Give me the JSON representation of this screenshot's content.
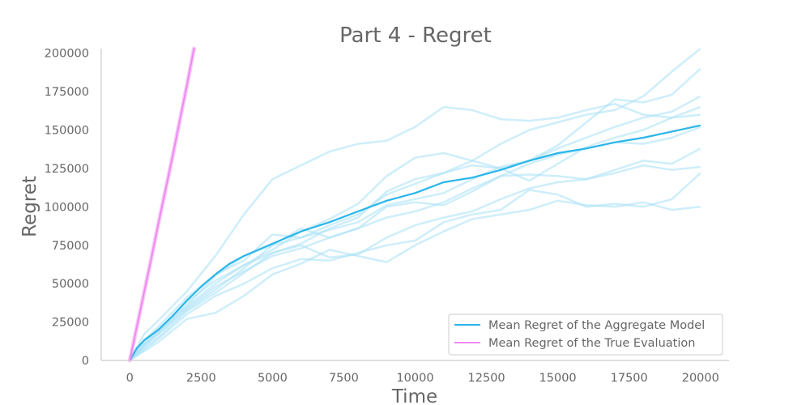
{
  "chart_data": {
    "type": "line",
    "title": "Part 4 - Regret",
    "xlabel": "Time",
    "ylabel": "Regret",
    "xlim": [
      -1000,
      21000
    ],
    "ylim": [
      0,
      203000
    ],
    "xticks": [
      0,
      2500,
      5000,
      7500,
      10000,
      12500,
      15000,
      17500,
      20000
    ],
    "xtick_labels": [
      "0",
      "2500",
      "5000",
      "7500",
      "10000",
      "12500",
      "15000",
      "17500",
      "20000"
    ],
    "yticks": [
      0,
      25000,
      50000,
      75000,
      100000,
      125000,
      150000,
      175000,
      200000
    ],
    "ytick_labels": [
      "0",
      "25000",
      "50000",
      "75000",
      "100000",
      "125000",
      "150000",
      "175000",
      "200000"
    ],
    "grid": false,
    "legend_position": "lower-right",
    "colors": {
      "aggregate": "#29b5ea",
      "aggregate_runs": "#aee3f7",
      "true_eval": "#ee8af0",
      "text": "#666666",
      "spine": "#cccccc"
    },
    "series": [
      {
        "name": "Mean Regret of the Aggregate Model",
        "x": [
          0,
          250,
          500,
          1000,
          1500,
          2000,
          2500,
          3000,
          3500,
          4000,
          5000,
          6000,
          7000,
          8000,
          9000,
          10000,
          11000,
          12000,
          13000,
          14000,
          15000,
          16000,
          17000,
          18000,
          19000,
          20000
        ],
        "y": [
          0,
          8000,
          13000,
          20000,
          29000,
          39000,
          48000,
          56000,
          63000,
          68000,
          76000,
          84000,
          90000,
          97000,
          104000,
          109000,
          116000,
          119000,
          124000,
          130000,
          135000,
          138000,
          142000,
          145000,
          149000,
          153000
        ]
      },
      {
        "name": "Mean Regret of the True Evaluation",
        "x": [
          0,
          250,
          500,
          750,
          1000,
          1250,
          1500,
          1750,
          2000,
          2250
        ],
        "y": [
          0,
          22000,
          44000,
          66000,
          89000,
          111000,
          133000,
          156000,
          179000,
          203000
        ]
      }
    ],
    "individual_runs": [
      {
        "x": [
          0,
          500,
          1000,
          2000,
          3000,
          4000,
          5000,
          6000,
          7000,
          8000,
          9000,
          10000,
          11000,
          12000,
          13000,
          14000,
          15000,
          16000,
          17000,
          18000,
          19000,
          20000
        ],
        "y": [
          0,
          17000,
          26000,
          45000,
          68000,
          95000,
          118000,
          127000,
          136000,
          141000,
          143000,
          152000,
          165000,
          163000,
          157000,
          156000,
          158000,
          163000,
          167000,
          160000,
          158000,
          160000
        ]
      },
      {
        "x": [
          0,
          500,
          1000,
          2000,
          3000,
          4000,
          5000,
          6000,
          7000,
          8000,
          9000,
          10000,
          11000,
          12000,
          13000,
          14000,
          15000,
          16000,
          17000,
          18000,
          19000,
          20000
        ],
        "y": [
          0,
          10000,
          18000,
          36000,
          55000,
          68000,
          75000,
          80000,
          88000,
          95000,
          108000,
          115000,
          122000,
          130000,
          141000,
          150000,
          155000,
          160000,
          163000,
          172000,
          188000,
          203000
        ]
      },
      {
        "x": [
          0,
          500,
          1000,
          2000,
          3000,
          4000,
          5000,
          6000,
          7000,
          8000,
          9000,
          10000,
          11000,
          12000,
          13000,
          14000,
          15000,
          16000,
          17000,
          18000,
          19000,
          20000
        ],
        "y": [
          0,
          12000,
          20000,
          35000,
          50000,
          62000,
          72000,
          84000,
          92000,
          102000,
          120000,
          132000,
          135000,
          130000,
          125000,
          130000,
          140000,
          155000,
          170000,
          168000,
          173000,
          190000
        ]
      },
      {
        "x": [
          0,
          500,
          1000,
          2000,
          3000,
          4000,
          5000,
          6000,
          7000,
          8000,
          9000,
          10000,
          11000,
          12000,
          13000,
          14000,
          15000,
          16000,
          17000,
          18000,
          19000,
          20000
        ],
        "y": [
          0,
          13000,
          22000,
          41000,
          56000,
          65000,
          82000,
          80000,
          85000,
          90000,
          101000,
          105000,
          109000,
          118000,
          126000,
          130000,
          138000,
          145000,
          152000,
          158000,
          162000,
          172000
        ]
      },
      {
        "x": [
          0,
          500,
          1000,
          2000,
          3000,
          4000,
          5000,
          6000,
          7000,
          8000,
          9000,
          10000,
          11000,
          12000,
          13000,
          14000,
          15000,
          16000,
          17000,
          18000,
          19000,
          20000
        ],
        "y": [
          0,
          11000,
          19000,
          38000,
          52000,
          62000,
          70000,
          76000,
          86000,
          93000,
          110000,
          118000,
          122000,
          127000,
          125000,
          117000,
          128000,
          139000,
          145000,
          150000,
          158000,
          165000
        ]
      },
      {
        "x": [
          0,
          500,
          1000,
          2000,
          3000,
          4000,
          5000,
          6000,
          7000,
          8000,
          9000,
          10000,
          11000,
          12000,
          13000,
          14000,
          15000,
          16000,
          17000,
          18000,
          19000,
          20000
        ],
        "y": [
          0,
          9000,
          17000,
          33000,
          46000,
          60000,
          75000,
          86000,
          80000,
          86000,
          100000,
          103000,
          101000,
          110000,
          120000,
          128000,
          134000,
          138000,
          142000,
          141000,
          145000,
          152000
        ]
      },
      {
        "x": [
          0,
          500,
          1000,
          2000,
          3000,
          4000,
          5000,
          6000,
          7000,
          8000,
          9000,
          10000,
          11000,
          12000,
          13000,
          14000,
          15000,
          16000,
          17000,
          18000,
          19000,
          20000
        ],
        "y": [
          0,
          10000,
          18000,
          34000,
          48000,
          58000,
          68000,
          73000,
          80000,
          86000,
          93000,
          97000,
          103000,
          112000,
          120000,
          121000,
          120000,
          118000,
          124000,
          130000,
          128000,
          138000
        ]
      },
      {
        "x": [
          0,
          500,
          1000,
          2000,
          3000,
          4000,
          5000,
          6000,
          7000,
          8000,
          9000,
          10000,
          11000,
          12000,
          13000,
          14000,
          15000,
          16000,
          17000,
          18000,
          19000,
          20000
        ],
        "y": [
          0,
          8000,
          15000,
          32000,
          44000,
          57000,
          70000,
          75000,
          67000,
          69000,
          80000,
          88000,
          93000,
          97000,
          105000,
          112000,
          116000,
          118000,
          122000,
          127000,
          124000,
          126000
        ]
      },
      {
        "x": [
          0,
          500,
          1000,
          2000,
          3000,
          4000,
          5000,
          6000,
          7000,
          8000,
          9000,
          10000,
          11000,
          12000,
          13000,
          14000,
          15000,
          16000,
          17000,
          18000,
          19000,
          20000
        ],
        "y": [
          0,
          7000,
          14000,
          30000,
          42000,
          50000,
          60000,
          66000,
          65000,
          70000,
          75000,
          78000,
          90000,
          95000,
          98000,
          111000,
          108000,
          100000,
          102000,
          100000,
          105000,
          122000
        ]
      },
      {
        "x": [
          0,
          500,
          1000,
          2000,
          3000,
          4000,
          5000,
          6000,
          7000,
          8000,
          9000,
          10000,
          11000,
          12000,
          13000,
          14000,
          15000,
          16000,
          17000,
          18000,
          19000,
          20000
        ],
        "y": [
          0,
          6000,
          12000,
          27000,
          31000,
          42000,
          56000,
          63000,
          72000,
          68000,
          64000,
          75000,
          84000,
          92000,
          95000,
          98000,
          104000,
          101000,
          100000,
          103000,
          98000,
          100000
        ]
      }
    ]
  }
}
